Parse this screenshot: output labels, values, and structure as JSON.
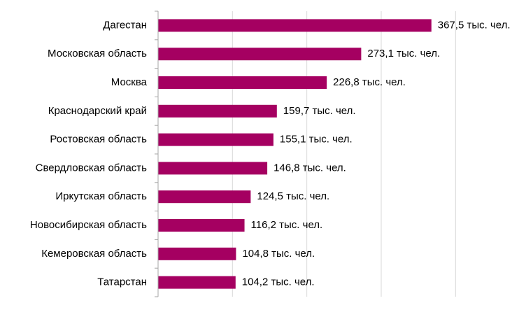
{
  "chart_data": {
    "type": "bar",
    "orientation": "horizontal",
    "categories": [
      "Дагестан",
      "Московская область",
      "Москва",
      "Краснодарский край",
      "Ростовская область",
      "Свердловская область",
      "Иркутская область",
      "Новосибирская область",
      "Кемеровская область",
      "Татарстан"
    ],
    "values": [
      367.5,
      273.1,
      226.8,
      159.7,
      155.1,
      146.8,
      124.5,
      116.2,
      104.8,
      104.2
    ],
    "value_labels": [
      "367,5 тыс. чел.",
      "273,1 тыс. чел.",
      "226,8 тыс. чел.",
      "159,7 тыс. чел.",
      "155,1 тыс. чел.",
      "146,8 тыс. чел.",
      "124,5 тыс. чел.",
      "116,2 тыс. чел.",
      "104,8 тыс. чел.",
      "104,2 тыс. чел."
    ],
    "xlim": [
      0,
      400
    ],
    "grid": true,
    "legend": "none",
    "title": "",
    "xlabel": "",
    "ylabel": "",
    "bar_color": "#A50061",
    "grid_color": "#D9D9D9",
    "axis_color": "#A6A6A6"
  }
}
